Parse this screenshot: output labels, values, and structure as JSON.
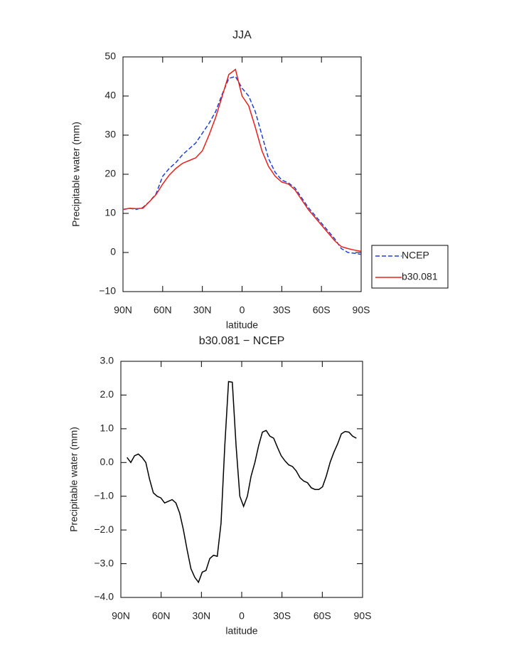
{
  "chart_data": [
    {
      "type": "line",
      "title": "JJA",
      "xlabel": "latitude",
      "ylabel": "Precipitable water (mm)",
      "x": [
        90,
        85,
        80,
        75,
        70,
        65,
        60,
        55,
        50,
        45,
        40,
        35,
        30,
        25,
        20,
        15,
        10,
        5,
        0,
        -5,
        -10,
        -15,
        -20,
        -25,
        -30,
        -35,
        -40,
        -45,
        -50,
        -55,
        -60,
        -65,
        -70,
        -75,
        -80,
        -85,
        -90
      ],
      "series": [
        {
          "name": "NCEP",
          "color": "#1f3fd6",
          "linestyle": "dashed",
          "values": [
            11,
            11.3,
            11,
            11.5,
            13,
            15,
            19.5,
            21.5,
            23,
            25,
            26.5,
            28,
            30.5,
            33,
            36,
            40.5,
            44.5,
            45,
            42,
            40,
            36,
            30,
            24,
            20.5,
            18.5,
            17.8,
            16.5,
            14,
            11.5,
            9.5,
            7.5,
            5.5,
            3.5,
            1,
            0,
            -0.2,
            -0.5
          ]
        },
        {
          "name": "b30.081",
          "color": "#e8201c",
          "linestyle": "solid",
          "values": [
            11,
            11.3,
            11.2,
            11.3,
            13,
            14.8,
            17.5,
            19.8,
            21.5,
            22.8,
            23.5,
            24.2,
            26,
            30,
            34.5,
            40,
            45.5,
            46.8,
            40,
            37.5,
            32,
            26,
            22,
            19.5,
            18,
            17.5,
            16,
            13.5,
            11,
            9,
            7,
            5,
            3,
            1.5,
            1,
            0.6,
            0.3
          ]
        }
      ],
      "xlim": [
        90,
        -90
      ],
      "xticks": [
        {
          "value": 90,
          "label": "90N"
        },
        {
          "value": 60,
          "label": "60N"
        },
        {
          "value": 30,
          "label": "30N"
        },
        0,
        {
          "value": -30,
          "label": "30S"
        },
        {
          "value": -60,
          "label": "60S"
        },
        {
          "value": -90,
          "label": "90S"
        }
      ],
      "ylim": [
        -10,
        50
      ],
      "yticks": [
        {
          "value": -10,
          "label": "−10"
        },
        0,
        10,
        20,
        30,
        40,
        50
      ],
      "legend": "right"
    },
    {
      "type": "line",
      "title": "b30.081 − NCEP",
      "xlabel": "latitude",
      "ylabel": "Precipitable water (mm)",
      "x": [
        85.4,
        82.6,
        79.8,
        77,
        74.2,
        71.4,
        68.6,
        65.8,
        63,
        60.2,
        57.4,
        54.6,
        51.8,
        49,
        46.2,
        43.4,
        40.6,
        37.8,
        35,
        32.2,
        29.4,
        26.6,
        23.8,
        21,
        18.2,
        15.4,
        12.6,
        9.8,
        7,
        4.2,
        1.4,
        -1.4,
        -4.2,
        -7,
        -9.8,
        -12.6,
        -15.4,
        -18.2,
        -21,
        -23.8,
        -26.6,
        -29.4,
        -32.2,
        -35,
        -37.8,
        -40.6,
        -43.4,
        -46.2,
        -49,
        -51.8,
        -54.6,
        -57.4,
        -60.2,
        -63,
        -65.8,
        -68.6,
        -71.4,
        -74.2,
        -77,
        -79.8,
        -82.6,
        -85.4
      ],
      "series": [
        {
          "name": "b30.081 − NCEP",
          "color": "#000000",
          "linestyle": "solid",
          "values": [
            0.15,
            0,
            0.2,
            0.25,
            0.15,
            0,
            -0.5,
            -0.9,
            -1.0,
            -1.05,
            -1.2,
            -1.15,
            -1.1,
            -1.2,
            -1.5,
            -2.0,
            -2.6,
            -3.15,
            -3.4,
            -3.55,
            -3.25,
            -3.2,
            -2.85,
            -2.75,
            -2.78,
            -1.8,
            0.5,
            2.4,
            2.38,
            0.5,
            -1.0,
            -1.3,
            -1.0,
            -0.4,
            0,
            0.5,
            0.9,
            0.95,
            0.78,
            0.72,
            0.45,
            0.2,
            0.05,
            -0.07,
            -0.12,
            -0.25,
            -0.45,
            -0.55,
            -0.6,
            -0.75,
            -0.8,
            -0.8,
            -0.72,
            -0.4,
            0,
            0.3,
            0.55,
            0.85,
            0.92,
            0.9,
            0.78,
            0.72
          ]
        }
      ],
      "xlim": [
        90,
        -90
      ],
      "xticks": [
        {
          "value": 90,
          "label": "90N"
        },
        {
          "value": 60,
          "label": "60N"
        },
        {
          "value": 30,
          "label": "30N"
        },
        0,
        {
          "value": -30,
          "label": "30S"
        },
        {
          "value": -60,
          "label": "60S"
        },
        {
          "value": -90,
          "label": "90S"
        }
      ],
      "ylim": [
        -4,
        3
      ],
      "yticks": [
        {
          "value": -4,
          "label": "−4.0"
        },
        {
          "value": -3,
          "label": "−3.0"
        },
        {
          "value": -2,
          "label": "−2.0"
        },
        {
          "value": -1,
          "label": "−1.0"
        },
        {
          "value": 0,
          "label": "0.0"
        },
        {
          "value": 1,
          "label": "1.0"
        },
        {
          "value": 2,
          "label": "2.0"
        },
        {
          "value": 3,
          "label": "3.0"
        }
      ]
    }
  ]
}
